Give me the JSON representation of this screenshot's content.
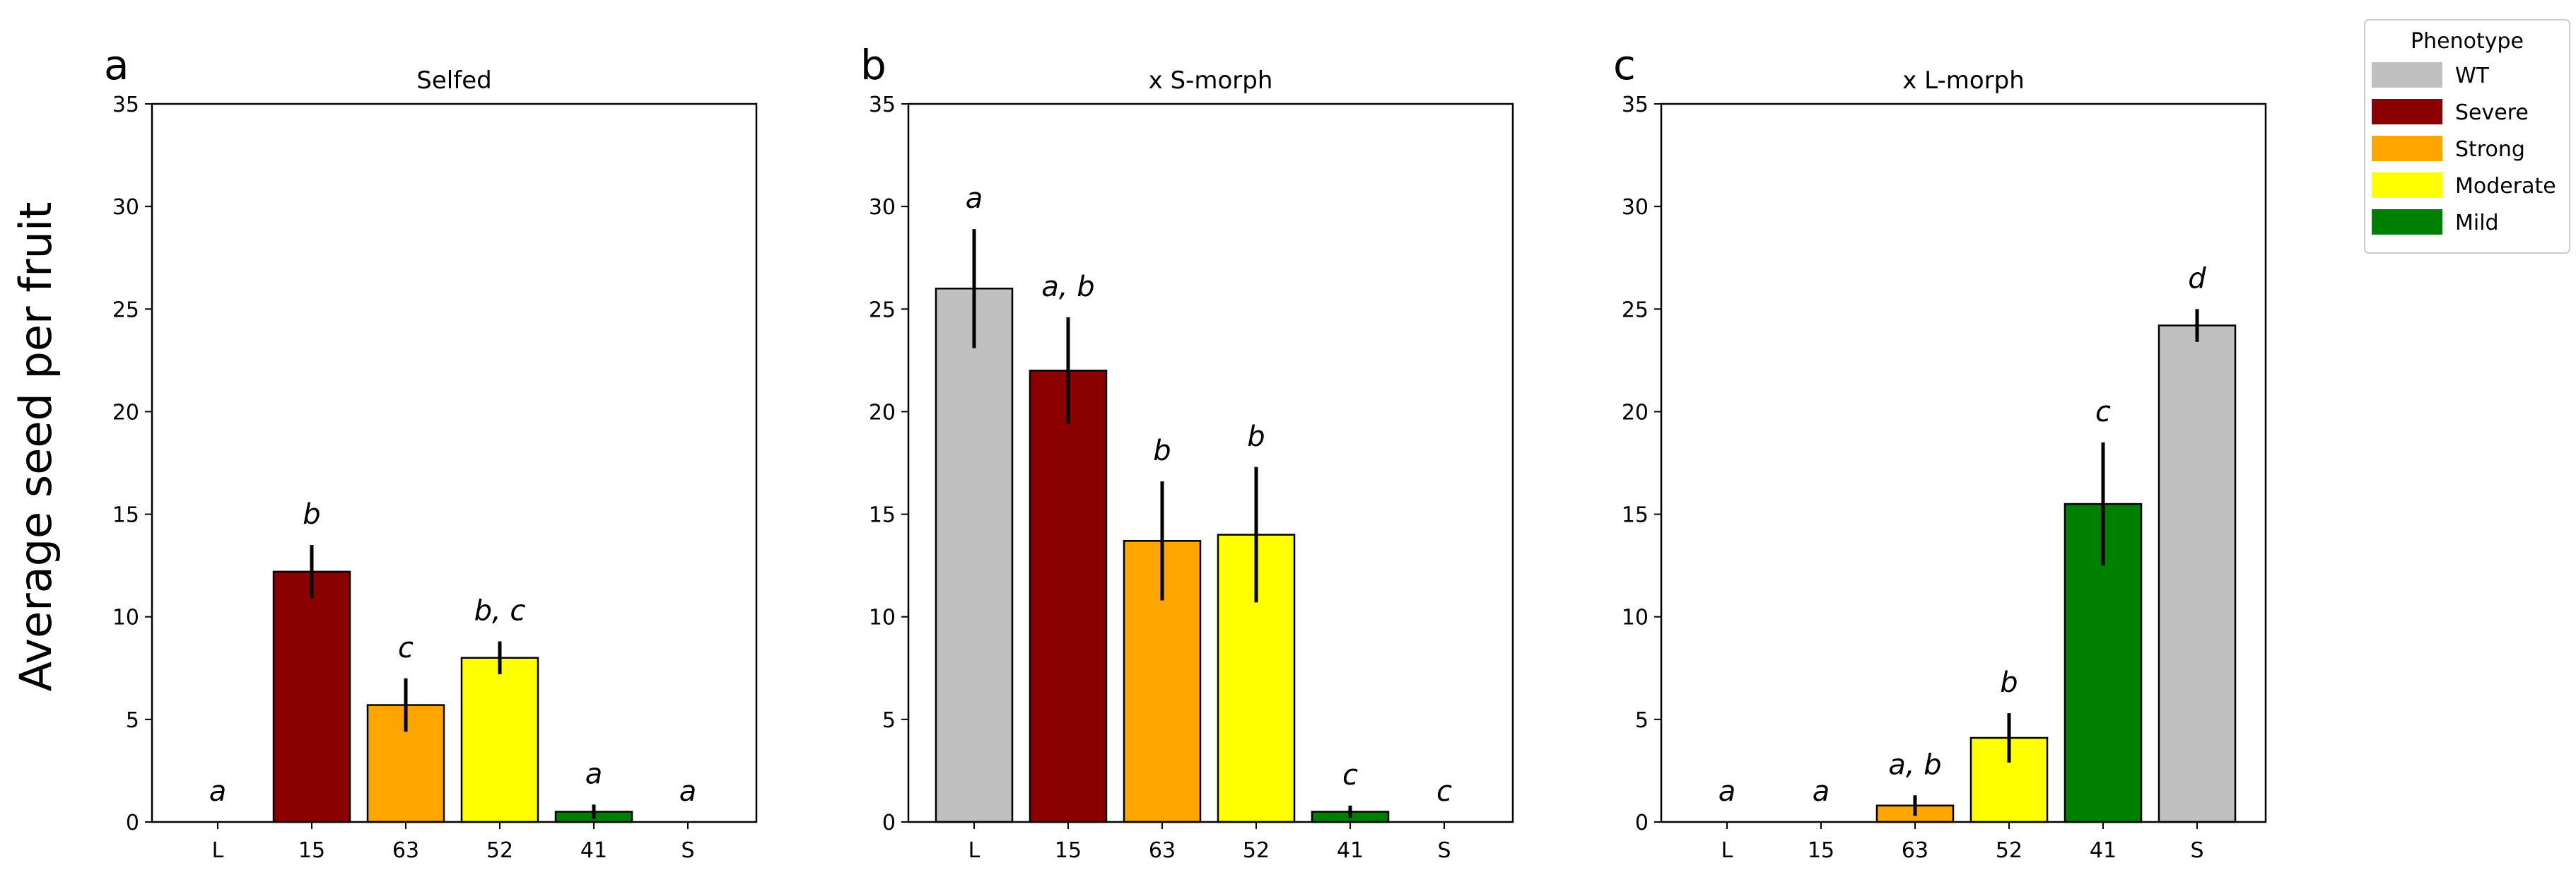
{
  "chart_data": {
    "type": "bar",
    "ylabel": "Average seed per fruit",
    "ylim": [
      0,
      35
    ],
    "yticks": [
      0,
      5,
      10,
      15,
      20,
      25,
      30,
      35
    ],
    "colors": {
      "WT": "#c0c0c0",
      "Severe": "#8b0000",
      "Strong": "#ffa500",
      "Moderate": "#ffff00",
      "Mild": "#008000"
    },
    "legend": {
      "title": "Phenotype",
      "location": "top-right",
      "entries": [
        {
          "label": "WT",
          "color": "#c0c0c0"
        },
        {
          "label": "Severe",
          "color": "#8b0000"
        },
        {
          "label": "Strong",
          "color": "#ffa500"
        },
        {
          "label": "Moderate",
          "color": "#ffff00"
        },
        {
          "label": "Mild",
          "color": "#008000"
        }
      ]
    },
    "panels": [
      {
        "letter": "a",
        "title": "Selfed",
        "categories": [
          "L",
          "15",
          "63",
          "52",
          "41",
          "S"
        ],
        "phenotypes": [
          "WT",
          "Severe",
          "Strong",
          "Moderate",
          "Mild",
          "WT"
        ],
        "values": [
          0,
          12.2,
          5.7,
          8.0,
          0.5,
          0
        ],
        "errors": [
          0,
          1.3,
          1.3,
          0.8,
          0.35,
          0
        ],
        "significance": [
          "a",
          "b",
          "c",
          "b, c",
          "a",
          "a"
        ]
      },
      {
        "letter": "b",
        "title": "x S-morph",
        "categories": [
          "L",
          "15",
          "63",
          "52",
          "41",
          "S"
        ],
        "phenotypes": [
          "WT",
          "Severe",
          "Strong",
          "Moderate",
          "Mild",
          "WT"
        ],
        "values": [
          26.0,
          22.0,
          13.7,
          14.0,
          0.5,
          0
        ],
        "errors": [
          2.9,
          2.6,
          2.9,
          3.3,
          0.3,
          0
        ],
        "significance": [
          "a",
          "a, b",
          "b",
          "b",
          "c",
          "c"
        ]
      },
      {
        "letter": "c",
        "title": "x L-morph",
        "categories": [
          "L",
          "15",
          "63",
          "52",
          "41",
          "S"
        ],
        "phenotypes": [
          "WT",
          "Severe",
          "Strong",
          "Moderate",
          "Mild",
          "WT"
        ],
        "values": [
          0,
          0,
          0.8,
          4.1,
          15.5,
          24.2
        ],
        "errors": [
          0,
          0,
          0.5,
          1.2,
          3.0,
          0.8
        ],
        "significance": [
          "a",
          "a",
          "a, b",
          "b",
          "c",
          "d"
        ]
      }
    ]
  }
}
